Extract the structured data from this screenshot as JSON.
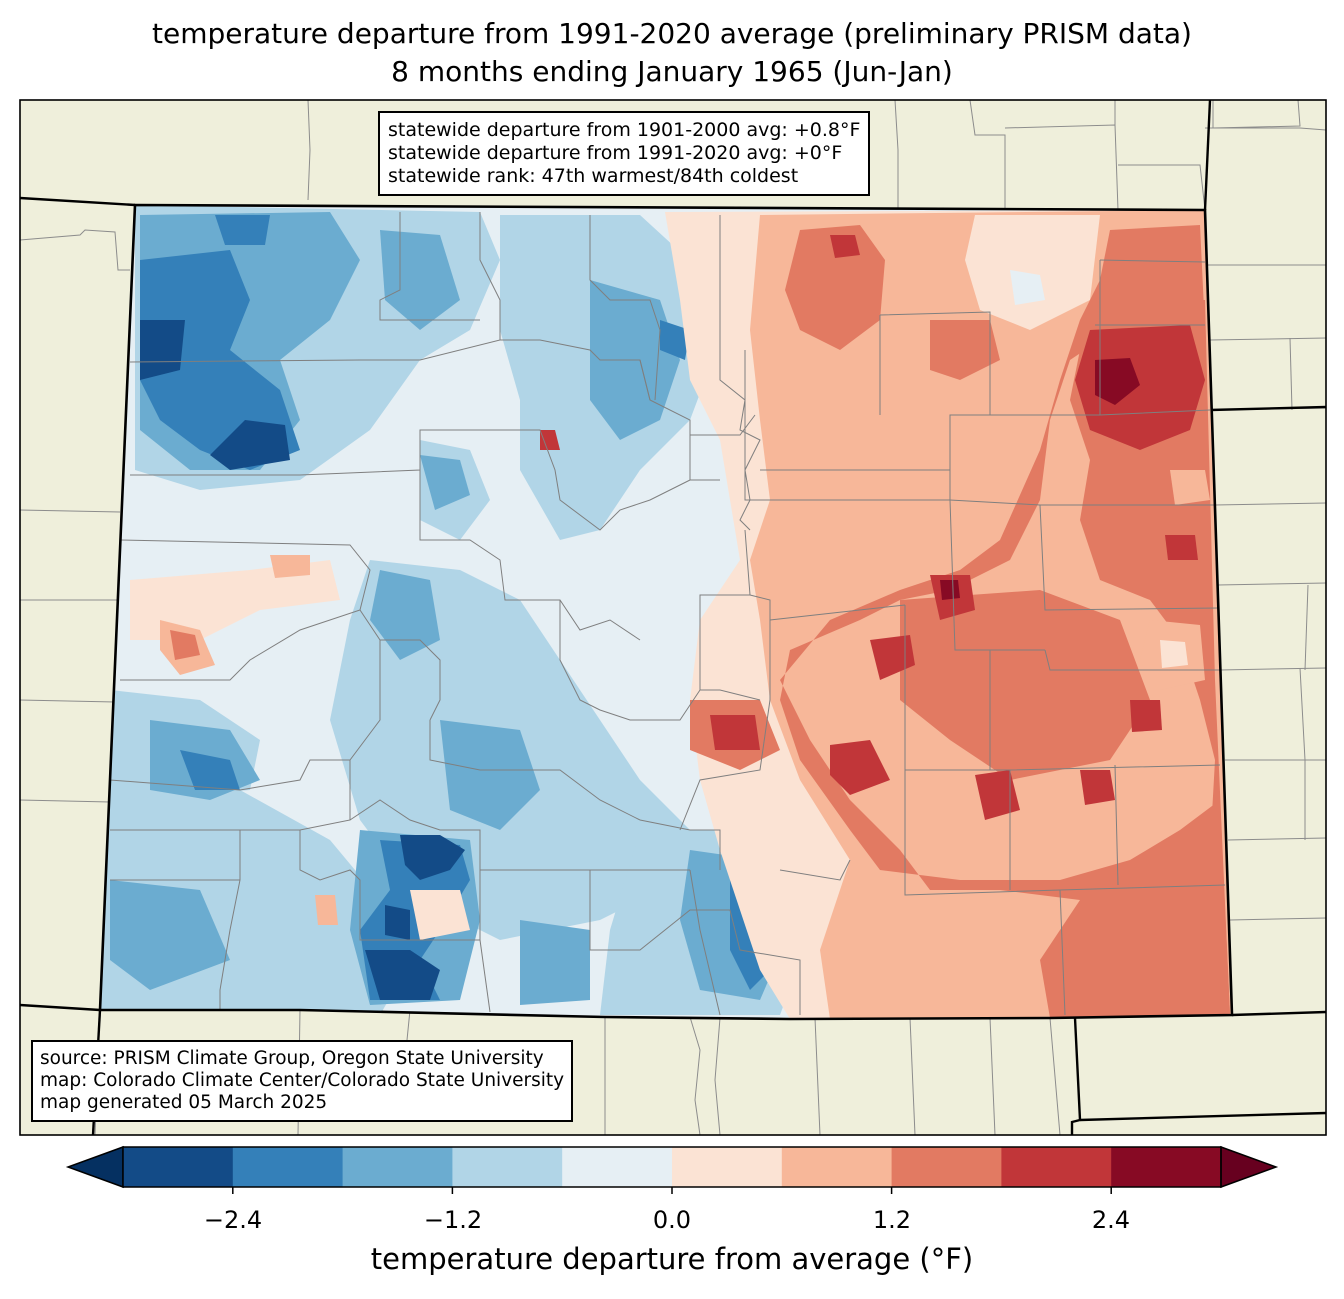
{
  "title_line1": "temperature departure from 1991-2020 average (preliminary PRISM data)",
  "title_line2": "8 months ending January 1965 (Jun-Jan)",
  "stats": {
    "line1": "statewide departure from 1901-2000 avg: +0.8°F",
    "line2": "statewide departure from 1991-2020 avg: +0°F",
    "line3": "statewide rank: 47th warmest/84th coldest"
  },
  "source": {
    "line1": "source: PRISM Climate Group, Oregon State University",
    "line2": "map: Colorado Climate Center/Colorado State University",
    "line3": "map generated 05 March 2025"
  },
  "colorbar": {
    "label": "temperature departure from average (°F)",
    "tick_labels": [
      "−2.4",
      "−1.2",
      "0.0",
      "1.2",
      "2.4"
    ],
    "bins": [
      -3.0,
      -2.4,
      -1.8,
      -1.2,
      -0.6,
      0.0,
      0.6,
      1.2,
      1.8,
      2.4,
      3.0
    ],
    "colors": [
      "#053061",
      "#134b87",
      "#3480b9",
      "#6bacd0",
      "#b1d5e7",
      "#e6eff4",
      "#fbe3d4",
      "#f7b799",
      "#e27a62",
      "#c13639",
      "#870a24",
      "#67001f"
    ]
  },
  "colors": {
    "land": "#efefdb",
    "state_border": "#000000",
    "county_line": "#888888"
  }
}
